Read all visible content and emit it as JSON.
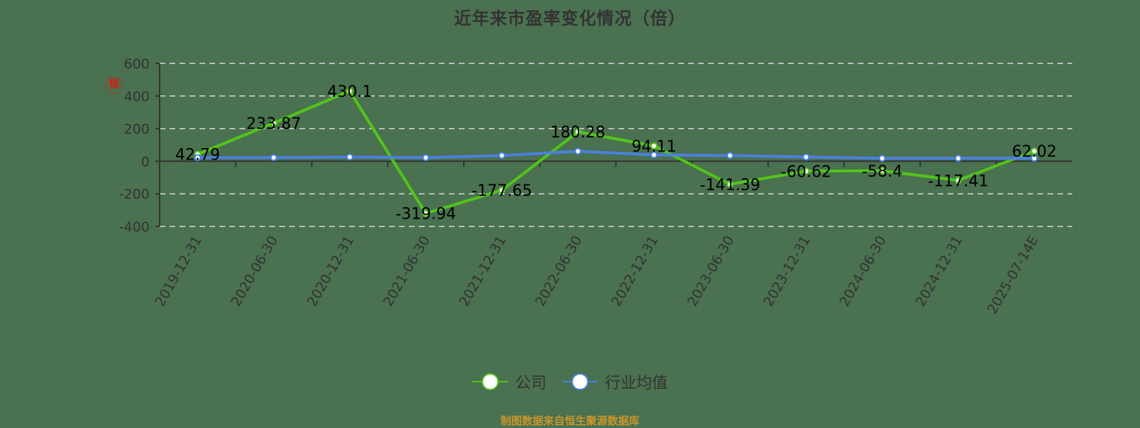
{
  "title": "近年来市盈率变化情况（倍）",
  "footer": "制图数据来自恒生聚源数据库",
  "watermark": "恒",
  "legend": [
    {
      "name": "公司",
      "color": "#52c41a"
    },
    {
      "name": "行业均值",
      "color": "#4a80e0"
    }
  ],
  "colors": {
    "background": "#4a7150",
    "company": "#52c41a",
    "industry": "#4a80e0",
    "axis": "#333333",
    "grid": "#d9d9d9",
    "footer": "#c8962a"
  },
  "chart_data": {
    "type": "line",
    "title": "近年来市盈率变化情况（倍）",
    "xlabel": "",
    "ylabel": "",
    "ylim": [
      -400,
      600
    ],
    "yticks": [
      600,
      400,
      200,
      0,
      -200,
      -400
    ],
    "grid": true,
    "legend_position": "bottom",
    "categories": [
      "2019-12-31",
      "2020-06-30",
      "2020-12-31",
      "2021-06-30",
      "2021-12-31",
      "2022-06-30",
      "2022-12-31",
      "2023-06-30",
      "2023-12-31",
      "2024-06-30",
      "2024-12-31",
      "2025-07-14E"
    ],
    "series": [
      {
        "name": "公司",
        "values": [
          42.79,
          233.87,
          430.1,
          -319.94,
          -177.65,
          180.28,
          94.11,
          -141.39,
          -60.62,
          -58.4,
          -117.41,
          62.02
        ],
        "labels_shown": true
      },
      {
        "name": "行业均值",
        "values": [
          22,
          22,
          26,
          22,
          35,
          61,
          39,
          35,
          26,
          18,
          18,
          18
        ],
        "labels_shown": false
      }
    ]
  }
}
